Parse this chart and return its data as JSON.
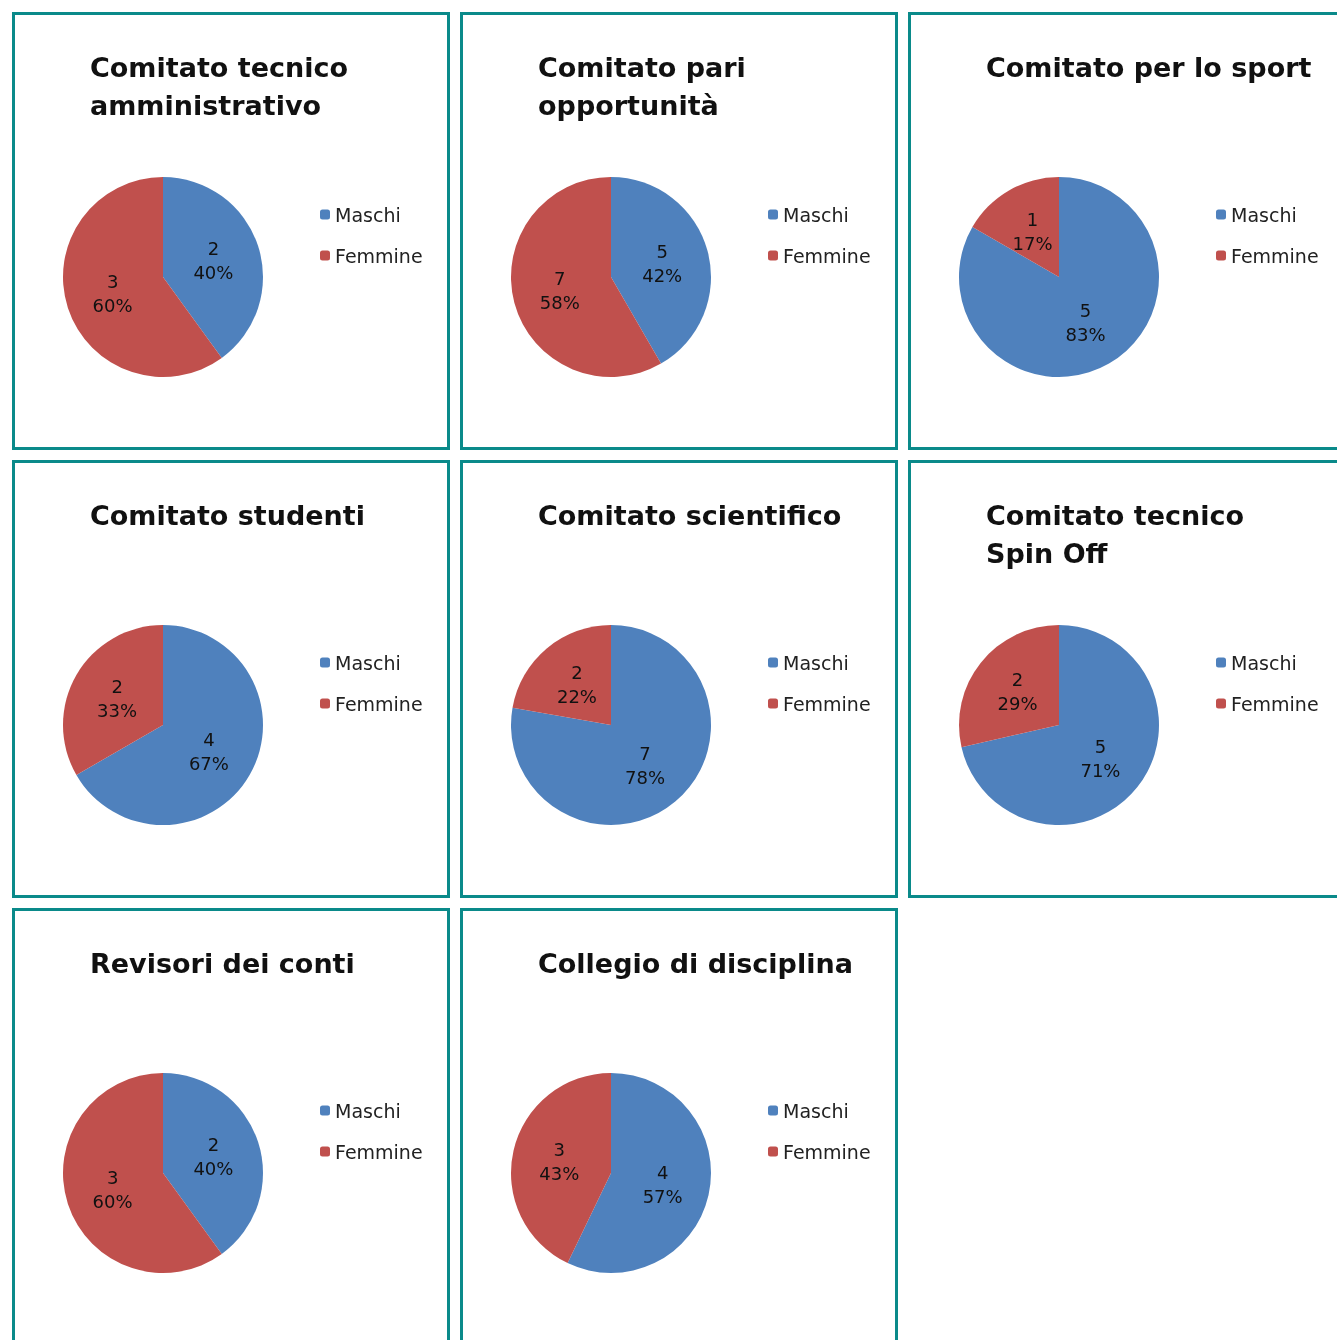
{
  "chart_data": [
    {
      "type": "pie",
      "title": "Comitato tecnico amministrativo",
      "categories": [
        "Maschi",
        "Femmine"
      ],
      "values": [
        2,
        3
      ],
      "colors": [
        "#4f81bd",
        "#c0504d"
      ],
      "value_labels": [
        "2\n40%",
        "3\n60%"
      ],
      "legend": "right"
    },
    {
      "type": "pie",
      "title": "Comitato pari opportunità",
      "categories": [
        "Maschi",
        "Femmine"
      ],
      "values": [
        5,
        7
      ],
      "colors": [
        "#4f81bd",
        "#c0504d"
      ],
      "value_labels": [
        "5\n42%",
        "7\n58%"
      ],
      "legend": "right"
    },
    {
      "type": "pie",
      "title": "Comitato per lo sport",
      "categories": [
        "Maschi",
        "Femmine"
      ],
      "values": [
        5,
        1
      ],
      "colors": [
        "#4f81bd",
        "#c0504d"
      ],
      "value_labels": [
        "5\n83%",
        "1\n17%"
      ],
      "legend": "right"
    },
    {
      "type": "pie",
      "title": "Comitato studenti",
      "categories": [
        "Maschi",
        "Femmine"
      ],
      "values": [
        4,
        2
      ],
      "colors": [
        "#4f81bd",
        "#c0504d"
      ],
      "value_labels": [
        "4\n67%",
        "2\n33%"
      ],
      "legend": "right"
    },
    {
      "type": "pie",
      "title": "Comitato scientifico",
      "categories": [
        "Maschi",
        "Femmine"
      ],
      "values": [
        7,
        2
      ],
      "colors": [
        "#4f81bd",
        "#c0504d"
      ],
      "value_labels": [
        "7\n78%",
        "2\n22%"
      ],
      "legend": "right"
    },
    {
      "type": "pie",
      "title": "Comitato tecnico Spin Off",
      "categories": [
        "Maschi",
        "Femmine"
      ],
      "values": [
        5,
        2
      ],
      "colors": [
        "#4f81bd",
        "#c0504d"
      ],
      "value_labels": [
        "5\n71%",
        "2\n29%"
      ],
      "legend": "right"
    },
    {
      "type": "pie",
      "title": "Revisori dei conti",
      "categories": [
        "Maschi",
        "Femmine"
      ],
      "values": [
        2,
        3
      ],
      "colors": [
        "#4f81bd",
        "#c0504d"
      ],
      "value_labels": [
        "2\n40%",
        "3\n60%"
      ],
      "legend": "right"
    },
    {
      "type": "pie",
      "title": "Collegio di disciplina",
      "categories": [
        "Maschi",
        "Femmine"
      ],
      "values": [
        4,
        3
      ],
      "colors": [
        "#4f81bd",
        "#c0504d"
      ],
      "value_labels": [
        "4\n57%",
        "3\n43%"
      ],
      "legend": "right"
    }
  ]
}
